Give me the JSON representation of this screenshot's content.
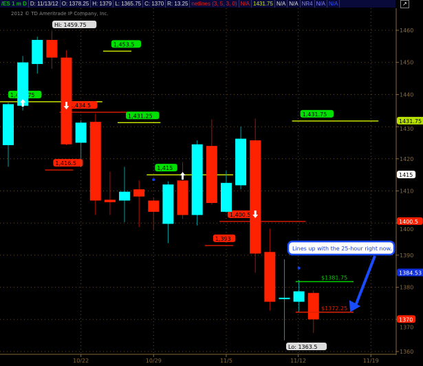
{
  "header": {
    "symbol": "/ES 1 m D",
    "date": "D: 11/13/12",
    "open": "O: 1378.25",
    "high": "H: 1379",
    "low": "L: 1365.75",
    "close": "C: 1370",
    "range": "R: 13.25",
    "study": "netlines (3, 5, 3, 0)",
    "na1": "N/A",
    "value": "1431.75",
    "na2": "N/A",
    "na3": "N/A",
    "nr4": "NR4",
    "na4": "N/A",
    "na5": "N/A"
  },
  "copyright": "2012 © TD Ameritrade IP Company, Inc.",
  "chart_data": {
    "type": "candlestick",
    "ylim": [
      1358,
      1464
    ],
    "yticks": [
      1360,
      1370,
      1380,
      1390,
      1400,
      1410,
      1420,
      1430,
      1440,
      1450,
      1460
    ],
    "xticks": [
      {
        "label": "10/22",
        "index": 5
      },
      {
        "label": "10/29",
        "index": 10
      },
      {
        "label": "11/5",
        "index": 15
      },
      {
        "label": "11/12",
        "index": 20
      },
      {
        "label": "11/19",
        "index": 25
      }
    ],
    "candles": [
      {
        "o": 1424.25,
        "h": 1437.5,
        "l": 1417.5,
        "c": 1437
      },
      {
        "o": 1436.5,
        "h": 1452,
        "l": 1435,
        "c": 1450
      },
      {
        "o": 1449.5,
        "h": 1458,
        "l": 1446.5,
        "c": 1457
      },
      {
        "o": 1457,
        "h": 1459.75,
        "l": 1448,
        "c": 1451.5
      },
      {
        "o": 1451.5,
        "h": 1453.75,
        "l": 1424.25,
        "c": 1424.5
      },
      {
        "o": 1425,
        "h": 1432,
        "l": 1417.5,
        "c": 1431.25
      },
      {
        "o": 1431.5,
        "h": 1434,
        "l": 1402.5,
        "c": 1407
      },
      {
        "o": 1407.25,
        "h": 1416,
        "l": 1402.5,
        "c": 1406.5
      },
      {
        "o": 1407,
        "h": 1417.5,
        "l": 1400.25,
        "c": 1409.75
      },
      {
        "o": 1410.5,
        "h": 1413.25,
        "l": 1398.75,
        "c": 1408.25
      },
      {
        "o": 1407,
        "h": 1408,
        "l": 1397.75,
        "c": 1403.5
      },
      {
        "o": 1399.75,
        "h": 1413,
        "l": 1393.75,
        "c": 1412
      },
      {
        "o": 1413.25,
        "h": 1419,
        "l": 1401.25,
        "c": 1402.5
      },
      {
        "o": 1402.5,
        "h": 1425.75,
        "l": 1399.25,
        "c": 1424.5
      },
      {
        "o": 1424,
        "h": 1432.25,
        "l": 1405.75,
        "c": 1406.25
      },
      {
        "o": 1403.5,
        "h": 1416.25,
        "l": 1403.25,
        "c": 1412.5
      },
      {
        "o": 1411.75,
        "h": 1430,
        "l": 1410.5,
        "c": 1426.25
      },
      {
        "o": 1425.75,
        "h": 1432.5,
        "l": 1384.5,
        "c": 1390.5
      },
      {
        "o": 1391,
        "h": 1398.25,
        "l": 1372.75,
        "c": 1375.5
      },
      {
        "o": 1376.5,
        "h": 1388.75,
        "l": 1363.5,
        "c": 1376.75
      },
      {
        "o": 1375.5,
        "h": 1382.25,
        "l": 1372.5,
        "c": 1378.75
      },
      {
        "o": 1378.25,
        "h": 1379,
        "l": 1365.75,
        "c": 1370
      }
    ],
    "levels": [
      {
        "label": "1,437.75",
        "price": 1437.75,
        "from": -0.5,
        "to": 6,
        "color": "#c8e000",
        "tag": "#00e000"
      },
      {
        "label": "1,453.5",
        "price": 1453.5,
        "from": 7,
        "to": 8,
        "color": "#c8e000",
        "tag": "#00e000"
      },
      {
        "label": "1,434.5",
        "price": 1434.5,
        "from": 4,
        "to": 9,
        "color": "#d01800",
        "tag": "#ff2000"
      },
      {
        "label": "1,431.25",
        "price": 1431.25,
        "from": 8,
        "to": 10,
        "color": "#c8e000",
        "tag": "#00e000"
      },
      {
        "label": "1,416.5",
        "price": 1416.5,
        "from": 3,
        "to": 4,
        "color": "#d01800",
        "tag": "#ff2000"
      },
      {
        "label": "1,415",
        "price": 1415,
        "from": 10,
        "to": 15,
        "color": "#c8e000",
        "tag": "#00e000"
      },
      {
        "label": "1,431.75",
        "price": 1431.75,
        "from": 20,
        "to": 25,
        "color": "#c8e000",
        "tag": "#00e000"
      },
      {
        "label": "1,400.5",
        "price": 1400.5,
        "from": 15,
        "to": 20,
        "color": "#d01800",
        "tag": "#ff2000"
      },
      {
        "label": "1,393",
        "price": 1393,
        "from": 14,
        "to": 15,
        "color": "#d01800",
        "tag": "#ff2000"
      }
    ],
    "price_lines": [
      {
        "label": "$1381.75",
        "price": 1381.75,
        "color": "#00d000"
      },
      {
        "label": "$1372.25",
        "price": 1372.25,
        "color": "#e02000"
      }
    ],
    "arrows": [
      {
        "index": 1,
        "dir": "up"
      },
      {
        "index": 4,
        "dir": "down"
      },
      {
        "index": 12,
        "dir": "up"
      },
      {
        "index": 17,
        "dir": "down"
      }
    ],
    "dots": [
      {
        "index": 10,
        "price": 1413.5
      },
      {
        "index": 20,
        "price": 1386
      }
    ],
    "hi_label": "Hi: 1459.75",
    "lo_label": "Lo: 1363.5",
    "axis_tags": [
      {
        "label": "1431.75",
        "price": 1431.75,
        "bg": "#b8e000",
        "fg": "#000"
      },
      {
        "label": "1415",
        "price": 1415,
        "bg": "#fff",
        "fg": "#000"
      },
      {
        "label": "1400.5",
        "price": 1400.5,
        "bg": "#ff2000",
        "fg": "#fff"
      },
      {
        "label": "1384.53",
        "price": 1384.53,
        "bg": "#1030e0",
        "fg": "#fff"
      },
      {
        "label": "1370",
        "price": 1370,
        "bg": "#ff2000",
        "fg": "#fff"
      }
    ],
    "callout": "Lines up with the 25-hour right now.",
    "colors": {
      "up": "#00ffff",
      "down": "#ff2200",
      "grid": "#6b4a1a",
      "axis": "#8a6a3a"
    }
  }
}
